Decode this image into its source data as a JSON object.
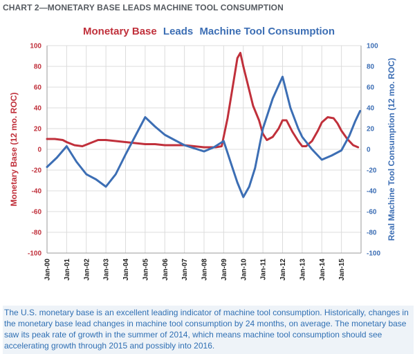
{
  "figure_label": "CHART 2—MONETARY BASE LEADS MACHINE TOOL CONSUMPTION",
  "caption": "The U.S. monetary base is an excellent leading indicator of machine tool consumption. Historically, changes in the monetary base lead changes in machine tool consumption by 24 months, on average. The monetary base saw its peak rate of growth in the summer of 2014, which means machine tool consumption should see accelerating growth through 2015 and possibly into 2016.",
  "colors": {
    "red": "#c0303b",
    "blue": "#3c6eb4",
    "grid": "#dcdcdc",
    "axis": "#9a9a9a"
  },
  "chart_data": {
    "type": "line",
    "title_parts": [
      "Monetary Base",
      "Leads",
      "Machine Tool Consumption"
    ],
    "ylabel_left": "Monetary Base (12 mo. ROC)",
    "ylabel_right": "Real Machine Tool Consumption (12 mo. ROC)",
    "ylim": [
      -100,
      100
    ],
    "yticks": [
      100,
      80,
      60,
      40,
      20,
      0,
      -20,
      -40,
      -60,
      -80,
      -100
    ],
    "xlim": [
      0,
      16
    ],
    "xticks": [
      "Jan-00",
      "Jan-01",
      "Jan-02",
      "Jan-03",
      "Jan-04",
      "Jan-05",
      "Jan-06",
      "Jan-07",
      "Jan-08",
      "Jan-09",
      "Jan-10",
      "Jan-11",
      "Jan-12",
      "Jan-13",
      "Jan-14",
      "Jan-15"
    ],
    "grid": true,
    "series": [
      {
        "name": "Monetary Base",
        "color": "#c0303b",
        "axis": "left",
        "x": [
          0,
          0.4,
          0.8,
          1.0,
          1.4,
          1.8,
          2.2,
          2.6,
          3.0,
          3.5,
          4.0,
          4.5,
          5.0,
          5.5,
          6.0,
          6.5,
          7.0,
          7.5,
          8.0,
          8.3,
          8.6,
          8.9,
          9.2,
          9.5,
          9.7,
          9.85,
          10.0,
          10.2,
          10.5,
          10.8,
          11.0,
          11.2,
          11.5,
          11.8,
          12.0,
          12.2,
          12.5,
          12.8,
          13.0,
          13.2,
          13.5,
          13.8,
          14.0,
          14.3,
          14.6,
          14.8,
          15.0,
          15.3,
          15.6,
          15.85
        ],
        "y": [
          10,
          10,
          9,
          7,
          4,
          3,
          6,
          9,
          9,
          8,
          7,
          6,
          5,
          5,
          4,
          4,
          4,
          3,
          2,
          2,
          2,
          3,
          30,
          65,
          88,
          93,
          80,
          65,
          42,
          28,
          15,
          9,
          12,
          20,
          28,
          28,
          17,
          8,
          3,
          3,
          8,
          18,
          26,
          31,
          30,
          25,
          18,
          10,
          4,
          2
        ]
      },
      {
        "name": "Machine Tool Consumption",
        "color": "#3c6eb4",
        "axis": "right",
        "x": [
          0,
          0.5,
          1.0,
          1.5,
          2.0,
          2.5,
          3.0,
          3.5,
          4.0,
          4.5,
          5.0,
          5.5,
          6.0,
          6.5,
          7.0,
          7.5,
          8.0,
          8.5,
          9.0,
          9.4,
          9.7,
          10.0,
          10.3,
          10.6,
          11.0,
          11.5,
          12.0,
          12.4,
          12.8,
          13.0,
          13.5,
          14.0,
          14.5,
          15.0,
          15.4,
          15.7,
          15.95
        ],
        "y": [
          -17,
          -8,
          3,
          -12,
          -24,
          -29,
          -36,
          -24,
          -5,
          13,
          31,
          22,
          14,
          9,
          4,
          1,
          -2,
          2,
          8,
          -15,
          -32,
          -46,
          -36,
          -18,
          20,
          49,
          70,
          40,
          20,
          12,
          0,
          -10,
          -6,
          -1,
          13,
          27,
          37
        ]
      }
    ]
  }
}
